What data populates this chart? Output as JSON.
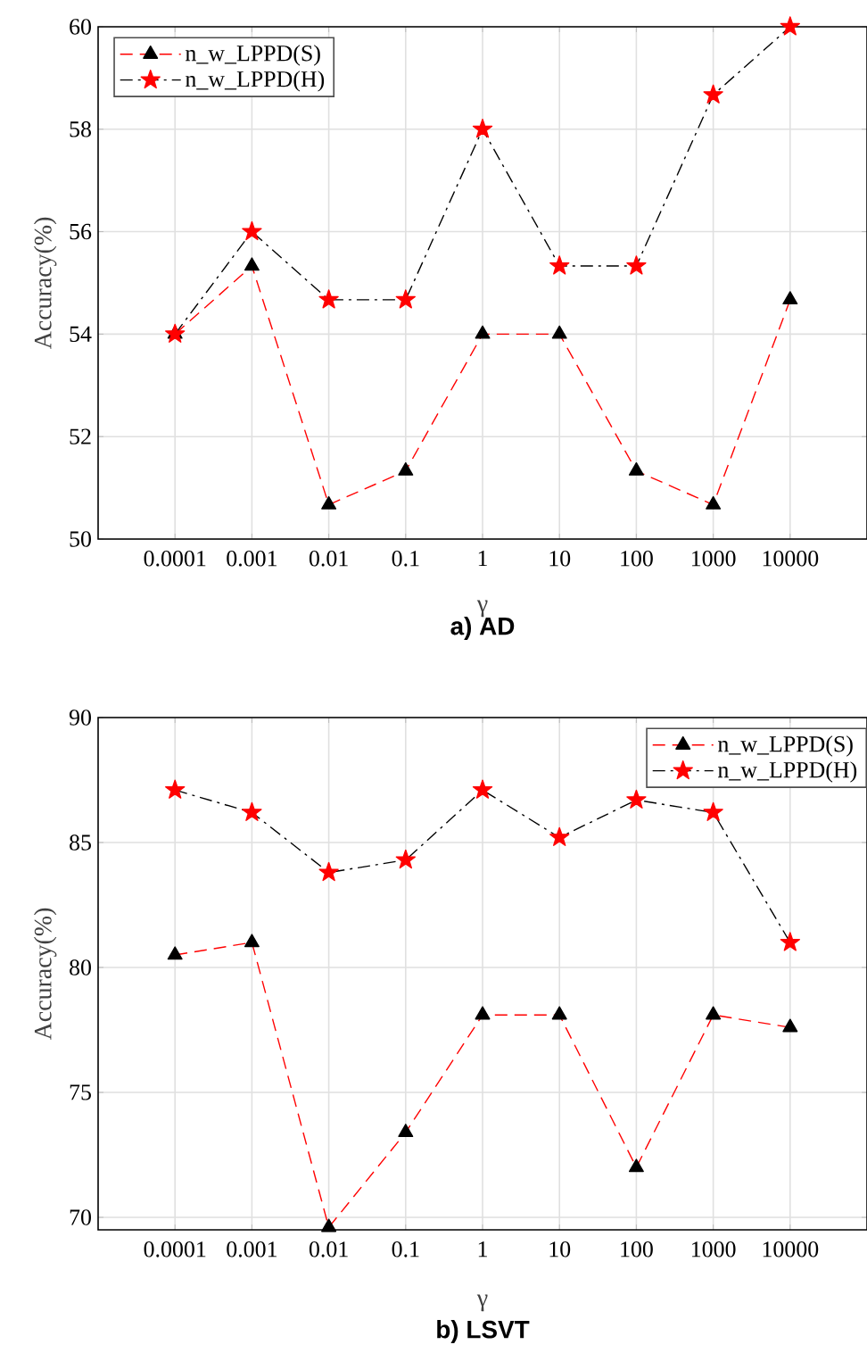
{
  "chart_data": [
    {
      "type": "line",
      "title": "a) AD",
      "xlabel": "γ",
      "ylabel": "Accuracy(%)",
      "categories": [
        "0.0001",
        "0.001",
        "0.01",
        "0.1",
        "1",
        "10",
        "100",
        "1000",
        "10000"
      ],
      "series": [
        {
          "name": "n_w_LPPD(S)",
          "color": "#000000",
          "marker": "triangle",
          "line_style": "dashed",
          "values": [
            54,
            55.33,
            50.67,
            51.33,
            54,
            54,
            51.33,
            50.67,
            54.67
          ]
        },
        {
          "name": "n_w_LPPD(H)",
          "color": "#ff0000",
          "marker": "star",
          "line_style": "dashdot",
          "values": [
            54,
            56,
            54.67,
            54.67,
            58,
            55.33,
            55.33,
            58.67,
            60
          ]
        }
      ],
      "ylim": [
        50,
        60
      ],
      "yticks": [
        50,
        52,
        54,
        56,
        58,
        60
      ],
      "grid": true,
      "legend": "top left"
    },
    {
      "type": "line",
      "title": "b) LSVT",
      "xlabel": "γ",
      "ylabel": "Accuracy(%)",
      "categories": [
        "0.0001",
        "0.001",
        "0.01",
        "0.1",
        "1",
        "10",
        "100",
        "1000",
        "10000"
      ],
      "series": [
        {
          "name": "n_w_LPPD(S)",
          "color": "#000000",
          "marker": "triangle",
          "line_style": "dashed",
          "values": [
            80.5,
            81,
            69.6,
            73.4,
            78.1,
            78.1,
            72,
            78.1,
            77.6
          ]
        },
        {
          "name": "n_w_LPPD(H)",
          "color": "#ff0000",
          "marker": "star",
          "line_style": "dashdot",
          "values": [
            87.1,
            86.2,
            83.8,
            84.3,
            87.1,
            85.2,
            86.7,
            86.2,
            81
          ]
        }
      ],
      "ylim": [
        69.5,
        90
      ],
      "yticks": [
        70,
        75,
        80,
        85,
        90
      ],
      "grid": true,
      "legend": "top right"
    }
  ]
}
